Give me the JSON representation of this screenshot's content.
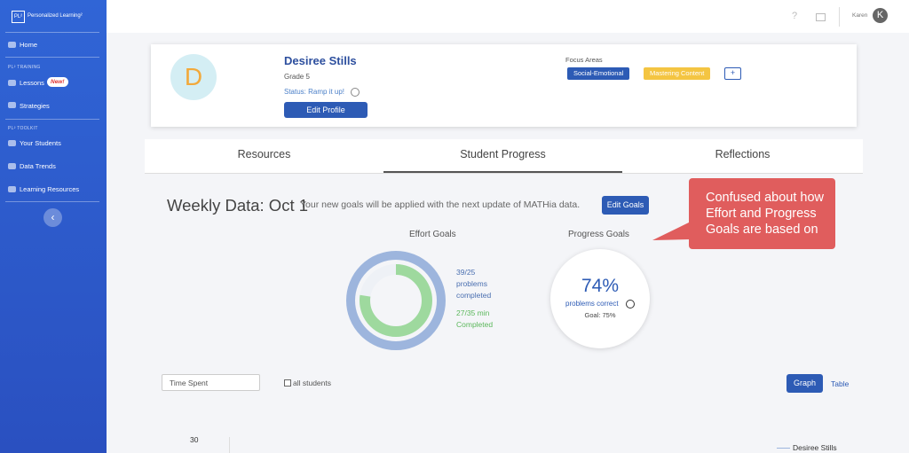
{
  "sidebar": {
    "logo": "PL²",
    "brand": "Personalized Learning²",
    "home": "Home",
    "training_heading": "PL² TRAINING",
    "lessons": "Lessons",
    "new_badge": "New!",
    "strategies": "Strategies",
    "toolkit_heading": "PL² TOOLKIT",
    "your_students": "Your Students",
    "data_trends": "Data Trends",
    "learning_resources": "Learning Resources",
    "collapse": "‹"
  },
  "header": {
    "help": "?",
    "user_name": "Karen",
    "avatar": "K"
  },
  "profile": {
    "initial": "D",
    "name": "Desiree Stills",
    "grade": "Grade 5",
    "status": "Status: Ramp it up!",
    "edit_button": "Edit Profile",
    "focus_label": "Focus Areas",
    "focus_areas": [
      "Social-Emotional",
      "Mastering Content"
    ],
    "add_button": "+"
  },
  "tabs": [
    "Resources",
    "Student Progress",
    "Reflections"
  ],
  "weekly": {
    "title": "Weekly Data: Oct 1",
    "note": "Your new goals will be applied with the next update of MATHia data.",
    "edit_goals": "Edit Goals"
  },
  "effort": {
    "title": "Effort Goals",
    "problems_value": "39/25",
    "problems_line1": "problems",
    "problems_line2": "completed",
    "minutes_value": "27/35 min",
    "minutes_label": "Completed"
  },
  "progress": {
    "title": "Progress Goals",
    "percent": "74%",
    "label": "problems correct",
    "goal": "Goal: 75%"
  },
  "callout": "Confused about how Effort and Progress Goals are based on",
  "controls": {
    "metric": "Time Spent",
    "all_students": "all students",
    "graph": "Graph",
    "table": "Table"
  },
  "graph": {
    "y_tick": "30",
    "legend": "Desiree Stills"
  }
}
